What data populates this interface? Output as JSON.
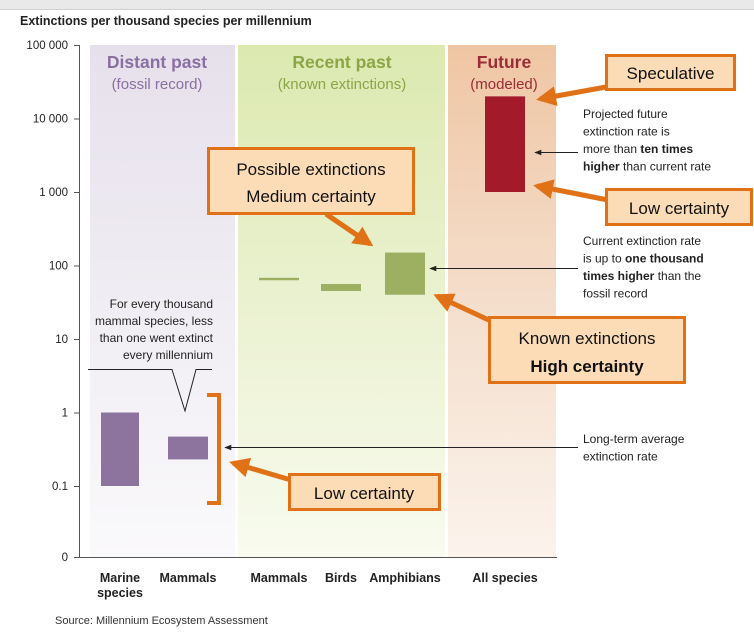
{
  "title": "Extinctions per thousand species per millennium",
  "source": "Source: Millennium Ecosystem Assessment",
  "colors": {
    "past": "#8c749e",
    "recent": "#9db061",
    "future": "#a31a2b",
    "callout_fill": "#fbdcb6",
    "callout_border": "#e07116",
    "arrow": "#e07116"
  },
  "periods": [
    {
      "title": "Distant past",
      "subtitle": "(fossil record)"
    },
    {
      "title": "Recent past",
      "subtitle": "(known extinctions)"
    },
    {
      "title": "Future",
      "subtitle": "(modeled)"
    }
  ],
  "x_labels": [
    {
      "lines": [
        "Marine",
        "species"
      ]
    },
    {
      "lines": [
        "Mammals"
      ]
    },
    {
      "lines": [
        "Mammals"
      ]
    },
    {
      "lines": [
        "Birds"
      ]
    },
    {
      "lines": [
        "Amphibians"
      ]
    },
    {
      "lines": [
        "All species"
      ]
    }
  ],
  "callouts": {
    "speculative": {
      "lines": [
        "Speculative"
      ]
    },
    "possible": {
      "lines": [
        "Possible extinctions",
        "Medium certainty"
      ]
    },
    "low_future": {
      "lines": [
        "Low certainty"
      ]
    },
    "known": {
      "lines": [
        "Known extinctions",
        "High certainty"
      ]
    },
    "low_past": {
      "lines": [
        "Low certainty"
      ]
    }
  },
  "notes": {
    "future": [
      [
        {
          "t": "Projected future",
          "b": false
        }
      ],
      [
        {
          "t": "extinction rate is",
          "b": false
        }
      ],
      [
        {
          "t": "more than ",
          "b": false
        },
        {
          "t": "ten times",
          "b": true
        }
      ],
      [
        {
          "t": "higher",
          "b": true
        },
        {
          "t": " than current rate",
          "b": false
        }
      ]
    ],
    "current": [
      [
        {
          "t": "Current extinction rate",
          "b": false
        }
      ],
      [
        {
          "t": "is up to ",
          "b": false
        },
        {
          "t": "one thousand",
          "b": true
        }
      ],
      [
        {
          "t": "times higher",
          "b": true
        },
        {
          "t": " than the",
          "b": false
        }
      ],
      [
        {
          "t": "fossil record",
          "b": false
        }
      ]
    ],
    "longterm": [
      [
        {
          "t": "Long-term average",
          "b": false
        }
      ],
      [
        {
          "t": "extinction rate",
          "b": false
        }
      ]
    ],
    "mammal": [
      [
        {
          "t": "For every thousand",
          "b": false
        }
      ],
      [
        {
          "t": "mammal species, less",
          "b": false
        }
      ],
      [
        {
          "t": "than one went extinct",
          "b": false
        }
      ],
      [
        {
          "t": "every millennium",
          "b": false
        }
      ]
    ]
  },
  "chart_data": {
    "type": "bar",
    "title": "Extinctions per thousand species per millennium",
    "y_scale": "log",
    "y_ticks": [
      "100 000",
      "10 000",
      "1 000",
      "100",
      "10",
      "1",
      "0.1",
      "0"
    ],
    "categories": [
      "Marine species",
      "Mammals",
      "Mammals",
      "Birds",
      "Amphibians",
      "All species"
    ],
    "series": [
      {
        "group": "Distant past",
        "category": "Marine species",
        "low": 0.1,
        "high": 1
      },
      {
        "group": "Distant past",
        "category": "Mammals",
        "low": 0.23,
        "high": 0.47
      },
      {
        "group": "Recent past",
        "category": "Mammals",
        "low": 63,
        "high": 68
      },
      {
        "group": "Recent past",
        "category": "Birds",
        "low": 45,
        "high": 56
      },
      {
        "group": "Recent past",
        "category": "Amphibians",
        "low": 40,
        "high": 150
      },
      {
        "group": "Future",
        "category": "All species",
        "low": 1000,
        "high": 20000
      }
    ],
    "annotations": [
      "Speculative",
      "Possible extinctions Medium certainty",
      "Low certainty",
      "Known extinctions High certainty",
      "Low certainty"
    ]
  }
}
